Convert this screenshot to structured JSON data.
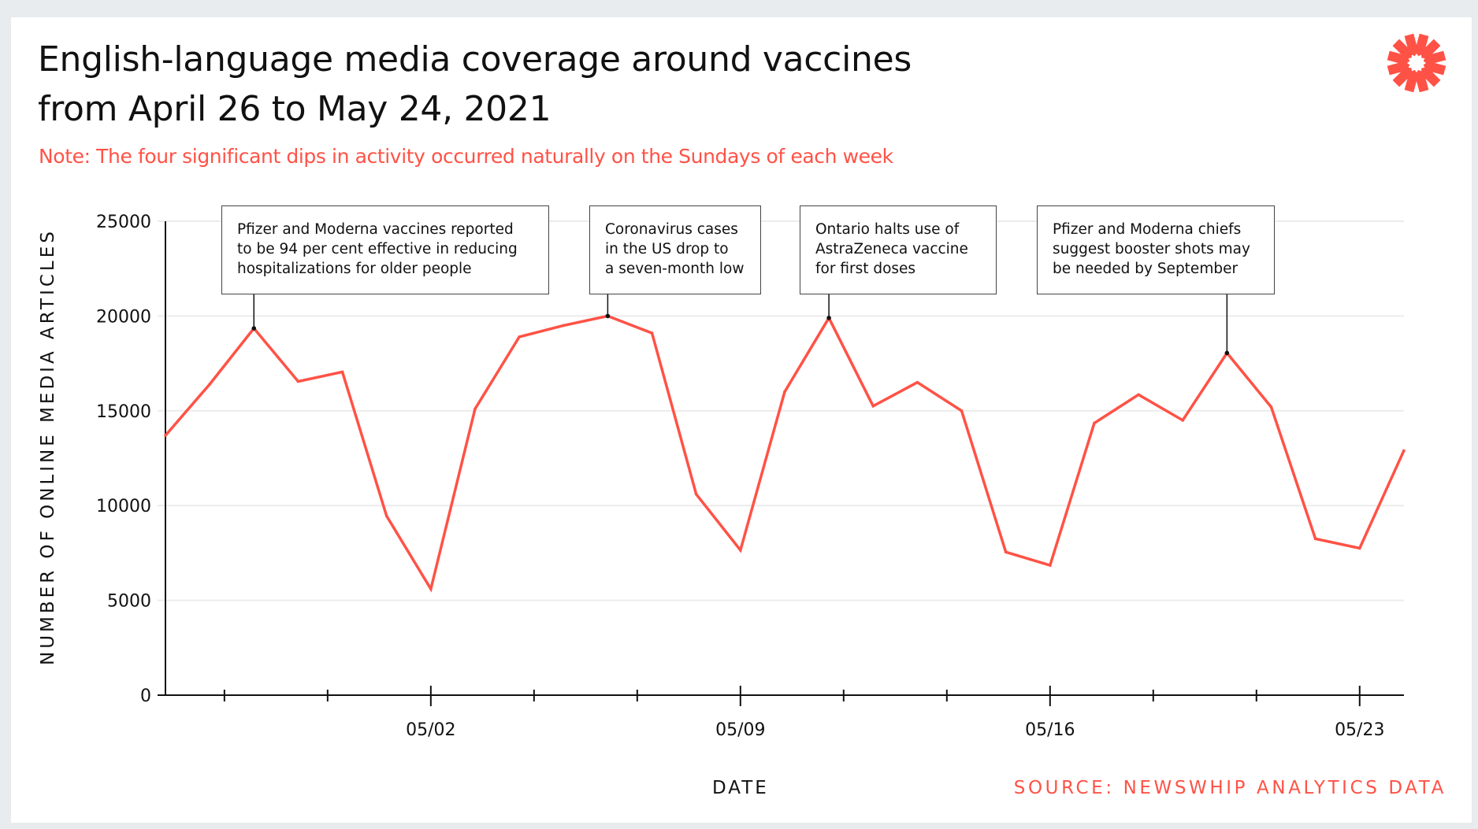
{
  "title_lines": [
    "English-language media coverage around vaccines",
    "from April 26 to May 24, 2021"
  ],
  "note": "Note: The four significant dips in activity occurred naturally on the Sundays of each week",
  "logo_icon": "starburst-logo-icon",
  "colors": {
    "accent": "#ff5246",
    "text": "#111111",
    "gridline": "#eeeeee",
    "background": "#e8ecef"
  },
  "source": "SOURCE: NEWSWHIP ANALYTICS DATA",
  "chart_data": {
    "type": "line",
    "title": "English-language media coverage around vaccines from April 26 to May 24, 2021",
    "subtitle": "Note: The four significant dips in activity occurred naturally on the Sundays of each week",
    "xlabel": "DATE",
    "ylabel": "NUMBER OF ONLINE MEDIA ARTICLES",
    "ylim": [
      0,
      25000
    ],
    "yticks": [
      0,
      5000,
      10000,
      15000,
      20000,
      25000
    ],
    "ytick_labels": [
      "0",
      "5000",
      "10000",
      "15000",
      "20000",
      "25000"
    ],
    "grid": "horizontal",
    "x": [
      "04/26",
      "04/27",
      "04/28",
      "04/29",
      "04/30",
      "05/01",
      "05/02",
      "05/03",
      "05/04",
      "05/05",
      "05/06",
      "05/07",
      "05/08",
      "05/09",
      "05/10",
      "05/11",
      "05/12",
      "05/13",
      "05/14",
      "05/15",
      "05/16",
      "05/17",
      "05/18",
      "05/19",
      "05/20",
      "05/21",
      "05/22",
      "05/23",
      "05/24"
    ],
    "xtick_labels": [
      {
        "date": "05/02",
        "label": "05/02"
      },
      {
        "date": "05/09",
        "label": "05/09"
      },
      {
        "date": "05/16",
        "label": "05/16"
      },
      {
        "date": "05/23",
        "label": "05/23"
      }
    ],
    "series": [
      {
        "name": "Online media articles",
        "color": "#ff5246",
        "values": [
          13700,
          16400,
          19350,
          16550,
          17050,
          9450,
          5600,
          15100,
          18900,
          19500,
          20000,
          19100,
          10600,
          7650,
          16000,
          19900,
          15250,
          16500,
          15000,
          7550,
          6850,
          14350,
          15850,
          14500,
          18050,
          15200,
          8250,
          7750,
          12900
        ]
      }
    ],
    "annotations": [
      {
        "date": "04/28",
        "lines": [
          "Pfizer and Moderna vaccines reported",
          "to be 94 per cent effective in reducing",
          "hospitalizations for older people"
        ]
      },
      {
        "date": "05/06",
        "lines": [
          "Coronavirus cases",
          "in the US drop to",
          "a seven-month low"
        ]
      },
      {
        "date": "05/11",
        "lines": [
          "Ontario halts use of",
          "AstraZeneca vaccine",
          "for first doses"
        ]
      },
      {
        "date": "05/20",
        "lines": [
          "Pfizer and Moderna chiefs",
          "suggest booster shots may",
          "be needed by September"
        ]
      }
    ]
  }
}
